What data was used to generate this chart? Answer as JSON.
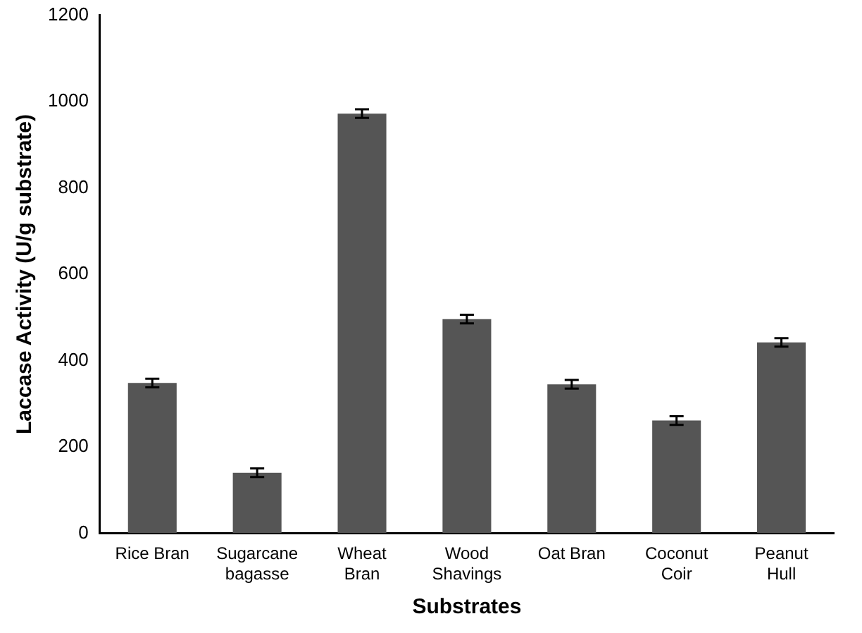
{
  "chart_data": {
    "type": "bar",
    "xlabel": "Substrates",
    "ylabel": "Laccase Activity (U/g substrate)",
    "categories": [
      "Rice Bran",
      "Sugarcane bagasse",
      "Wheat Bran",
      "Wood Shavings",
      "Oat Bran",
      "Coconut Coir",
      "Peanut Hull"
    ],
    "values": [
      348,
      140,
      972,
      496,
      345,
      261,
      442
    ],
    "errors": [
      10,
      10,
      10,
      10,
      10,
      10,
      10
    ],
    "color": "#555555",
    "ylim": [
      0,
      1200
    ],
    "yticks": [
      0,
      200,
      400,
      600,
      800,
      1000,
      1200
    ],
    "grid": false,
    "legend": false
  }
}
